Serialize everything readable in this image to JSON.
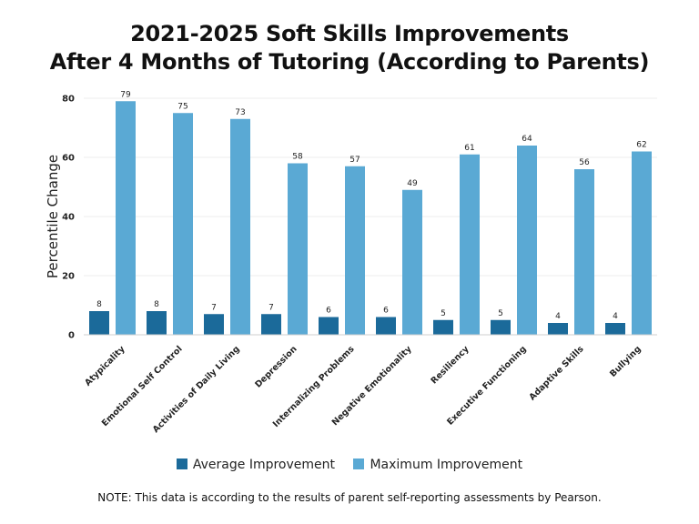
{
  "chart_data": {
    "type": "bar",
    "title_lines": [
      "2021-2025 Soft Skills Improvements",
      "After 4 Months of Tutoring (According to Parents)"
    ],
    "ylabel": "Percentile Change",
    "xlabel": "",
    "ylim": [
      0,
      80
    ],
    "yticks": [
      0,
      20,
      40,
      60,
      80
    ],
    "grid": true,
    "legend_position": "bottom",
    "categories": [
      "Atypicality",
      "Emotional Self Control",
      "Activities of Daily Living",
      "Depression",
      "Internalizing Problems",
      "Negative Emotionality",
      "Resiliency",
      "Executive Functioning",
      "Adaptive Skills",
      "Bullying"
    ],
    "series": [
      {
        "name": "Average Improvement",
        "color": "#1b6a9a",
        "values": [
          8,
          8,
          7,
          7,
          6,
          6,
          5,
          5,
          4,
          4
        ]
      },
      {
        "name": "Maximum Improvement",
        "color": "#5aa9d4",
        "values": [
          79,
          75,
          73,
          58,
          57,
          49,
          61,
          64,
          56,
          62
        ]
      }
    ]
  },
  "note": "NOTE: This data is according to the results of parent self-reporting assessments by Pearson."
}
